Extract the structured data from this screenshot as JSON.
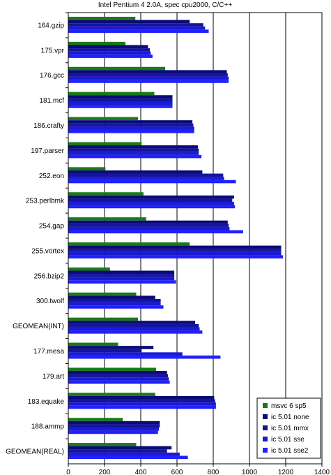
{
  "chart_data": {
    "type": "bar",
    "orientation": "horizontal",
    "title": "Intel Pentium 4 2.0A, spec cpu2000, C/C++",
    "xlabel": "",
    "ylabel": "",
    "xlim": [
      0,
      1400
    ],
    "x_ticks": [
      0,
      200,
      400,
      600,
      800,
      1000,
      1200,
      1400
    ],
    "grid": "vertical",
    "legend_position": "bottom-right",
    "categories": [
      "164.gzip",
      "175.vpr",
      "176.gcc",
      "181.mcf",
      "186.crafty",
      "197.parser",
      "252.eon",
      "253.perlbmk",
      "254.gap",
      "255.vortex",
      "256.bzip2",
      "300.twolf",
      "GEOMEAN(INT)",
      "177.mesa",
      "179.art",
      "183.equake",
      "188.ammp",
      "GEOMEAN(REAL)"
    ],
    "series": [
      {
        "name": "msvc 6 sp5",
        "color": "#1a7a1a",
        "values": [
          370,
          315,
          535,
          475,
          385,
          405,
          205,
          415,
          430,
          670,
          230,
          375,
          385,
          275,
          485,
          480,
          300,
          375
        ]
      },
      {
        "name": "ic 5.01 none",
        "color": "#0a0a78",
        "values": [
          670,
          440,
          875,
          575,
          685,
          715,
          740,
          915,
          880,
          1175,
          585,
          480,
          700,
          470,
          545,
          805,
          505,
          570
        ]
      },
      {
        "name": "ic 5.01 mmx",
        "color": "#14149e",
        "values": [
          745,
          450,
          880,
          575,
          690,
          720,
          855,
          905,
          885,
          1175,
          585,
          510,
          720,
          405,
          550,
          810,
          505,
          545
        ]
      },
      {
        "name": "ic 5.01 sse",
        "color": "#1a1ad2",
        "values": [
          755,
          455,
          885,
          575,
          695,
          720,
          860,
          915,
          890,
          1175,
          585,
          510,
          725,
          630,
          555,
          815,
          500,
          615
        ]
      },
      {
        "name": "ic 5.01 sse2",
        "color": "#2020ff",
        "values": [
          775,
          465,
          885,
          575,
          695,
          735,
          925,
          920,
          965,
          1185,
          595,
          525,
          740,
          840,
          560,
          815,
          495,
          660
        ]
      }
    ]
  }
}
